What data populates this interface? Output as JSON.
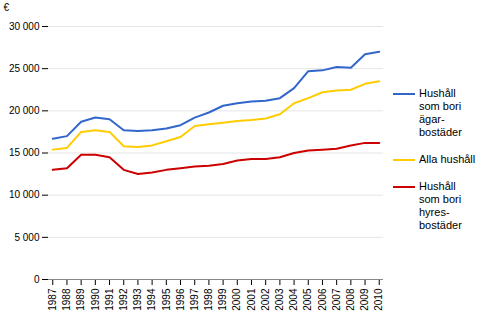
{
  "chart_data": {
    "type": "line",
    "ylabel": "€",
    "x": [
      1987,
      1988,
      1989,
      1990,
      1991,
      1992,
      1993,
      1994,
      1995,
      1996,
      1997,
      1998,
      1999,
      2000,
      2001,
      2002,
      2003,
      2004,
      2005,
      2006,
      2007,
      2008,
      2009,
      2010
    ],
    "series": [
      {
        "name": "Hushåll\nsom bori\nägar-\nbostäder",
        "color": "#3366CC",
        "values": [
          16700,
          17000,
          18700,
          19200,
          19000,
          17700,
          17600,
          17700,
          17900,
          18300,
          19200,
          19800,
          20600,
          20900,
          21100,
          21200,
          21500,
          22700,
          24700,
          24800,
          25200,
          25100,
          26700,
          27000
        ]
      },
      {
        "name": "Alla hushåll",
        "color": "#FFCC00",
        "values": [
          15400,
          15600,
          17500,
          17700,
          17500,
          15800,
          15700,
          15900,
          16400,
          16900,
          18200,
          18400,
          18600,
          18800,
          18900,
          19100,
          19600,
          20900,
          21500,
          22200,
          22400,
          22500,
          23200,
          23500
        ]
      },
      {
        "name": "Hushåll\nsom bori\nhyres-\nbostäder",
        "color": "#CC0000",
        "values": [
          13000,
          13200,
          14800,
          14800,
          14500,
          13000,
          12500,
          12700,
          13000,
          13200,
          13400,
          13500,
          13700,
          14100,
          14300,
          14300,
          14500,
          15000,
          15300,
          15400,
          15500,
          15900,
          16200,
          16200
        ]
      }
    ],
    "xlim": [
      1986.7,
      2010.3
    ],
    "xticks": [
      1987,
      1988,
      1989,
      1990,
      1991,
      1992,
      1993,
      1994,
      1995,
      1996,
      1997,
      1998,
      1999,
      2000,
      2001,
      2002,
      2003,
      2004,
      2005,
      2006,
      2007,
      2008,
      2009,
      2010
    ],
    "ylim": [
      0,
      30000
    ],
    "yticks": [
      0,
      {
        "value": 5000,
        "label": "5 000"
      },
      {
        "value": 10000,
        "label": "10 000"
      },
      {
        "value": 15000,
        "label": "15 000"
      },
      {
        "value": 20000,
        "label": "20 000"
      },
      {
        "value": 25000,
        "label": "25 000"
      },
      {
        "value": 30000,
        "label": "30 000"
      }
    ],
    "grid": true,
    "legend": "right"
  }
}
